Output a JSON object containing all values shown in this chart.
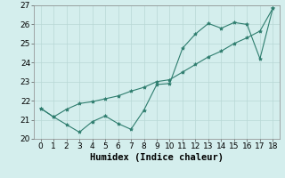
{
  "xlabel": "Humidex (Indice chaleur)",
  "xlim": [
    -0.5,
    18.5
  ],
  "ylim": [
    20,
    27
  ],
  "yticks": [
    20,
    21,
    22,
    23,
    24,
    25,
    26,
    27
  ],
  "xticks": [
    0,
    1,
    2,
    3,
    4,
    5,
    6,
    7,
    8,
    9,
    10,
    11,
    12,
    13,
    14,
    15,
    16,
    17,
    18
  ],
  "line1_x": [
    0,
    1,
    2,
    3,
    4,
    5,
    6,
    7,
    8,
    9,
    10,
    11,
    12,
    13,
    14,
    15,
    16,
    17,
    18
  ],
  "line1_y": [
    21.6,
    21.15,
    20.75,
    20.35,
    20.9,
    21.2,
    20.8,
    20.5,
    21.5,
    22.85,
    22.9,
    24.75,
    25.5,
    26.05,
    25.8,
    26.1,
    26.0,
    24.2,
    26.85
  ],
  "line2_x": [
    0,
    1,
    2,
    3,
    4,
    5,
    6,
    7,
    8,
    9,
    10,
    11,
    12,
    13,
    14,
    15,
    16,
    17,
    18
  ],
  "line2_y": [
    21.6,
    21.15,
    21.55,
    21.85,
    21.95,
    22.1,
    22.25,
    22.5,
    22.7,
    23.0,
    23.1,
    23.5,
    23.9,
    24.3,
    24.6,
    25.0,
    25.3,
    25.65,
    26.85
  ],
  "line_color": "#2e7d6e",
  "background_color": "#d4eeed",
  "grid_color": "#b8d8d5",
  "tick_fontsize": 6.5,
  "xlabel_fontsize": 7.5
}
